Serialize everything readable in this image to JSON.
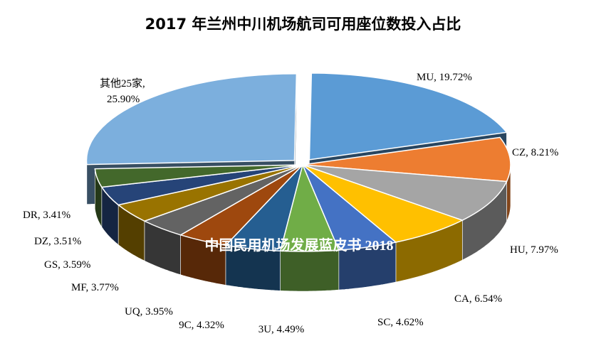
{
  "chart_data": {
    "type": "pie",
    "title": "2017 年兰州中川机场航司可用座位数投入占比",
    "watermark": "中国民用机场发展蓝皮书 2018",
    "unit": "%",
    "slices": [
      {
        "name": "MU",
        "value": 19.72,
        "label": "MU, 19.72%",
        "color": "#5B9BD5",
        "exploded": true
      },
      {
        "name": "CZ",
        "value": 8.21,
        "label": "CZ, 8.21%",
        "color": "#ED7D31"
      },
      {
        "name": "HU",
        "value": 7.97,
        "label": "HU, 7.97%",
        "color": "#A5A5A5"
      },
      {
        "name": "CA",
        "value": 6.54,
        "label": "CA, 6.54%",
        "color": "#FFC000"
      },
      {
        "name": "SC",
        "value": 4.62,
        "label": "SC, 4.62%",
        "color": "#4472C4"
      },
      {
        "name": "3U",
        "value": 4.49,
        "label": "3U, 4.49%",
        "color": "#70AD47"
      },
      {
        "name": "9C",
        "value": 4.32,
        "label": "9C, 4.32%",
        "color": "#255E91"
      },
      {
        "name": "UQ",
        "value": 3.95,
        "label": "UQ, 3.95%",
        "color": "#9E480E"
      },
      {
        "name": "MF",
        "value": 3.77,
        "label": "MF, 3.77%",
        "color": "#636363"
      },
      {
        "name": "GS",
        "value": 3.59,
        "label": "GS, 3.59%",
        "color": "#997300"
      },
      {
        "name": "DZ",
        "value": 3.51,
        "label": "DZ, 3.51%",
        "color": "#264478"
      },
      {
        "name": "DR",
        "value": 3.41,
        "label": "DR, 3.41%",
        "color": "#43682B"
      },
      {
        "name": "其他25家",
        "value": 25.9,
        "label_lines": [
          "其他25家,",
          "25.90%"
        ],
        "color": "#7CAFDD",
        "exploded": true
      }
    ]
  }
}
